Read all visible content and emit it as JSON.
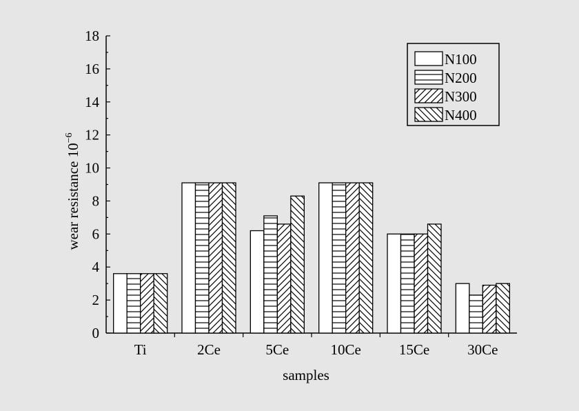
{
  "chart_data": {
    "type": "bar",
    "xlabel": "samples",
    "ylabel": "wear resistance 10",
    "ylabel_exponent": "−6",
    "categories": [
      "Ti",
      "2Ce",
      "5Ce",
      "10Ce",
      "15Ce",
      "30Ce"
    ],
    "ylim": [
      0,
      18
    ],
    "yticks": [
      0,
      2,
      4,
      6,
      8,
      10,
      12,
      14,
      16,
      18
    ],
    "grid": false,
    "legend_position": "top-right",
    "series": [
      {
        "name": "N100",
        "pattern": "none",
        "values": [
          3.6,
          9.1,
          6.2,
          9.1,
          6.0,
          3.0
        ]
      },
      {
        "name": "N200",
        "pattern": "horizontal",
        "values": [
          3.6,
          9.1,
          7.1,
          9.1,
          6.0,
          2.3
        ]
      },
      {
        "name": "N300",
        "pattern": "forward-diagonal",
        "values": [
          3.6,
          9.1,
          6.6,
          9.1,
          6.0,
          2.9
        ]
      },
      {
        "name": "N400",
        "pattern": "backward-diagonal",
        "values": [
          3.6,
          9.1,
          8.3,
          9.1,
          6.6,
          3.0
        ]
      }
    ]
  },
  "colors": {
    "background": "#e6e6e6",
    "bar_fill": "#ffffff",
    "ink": "#000000"
  }
}
